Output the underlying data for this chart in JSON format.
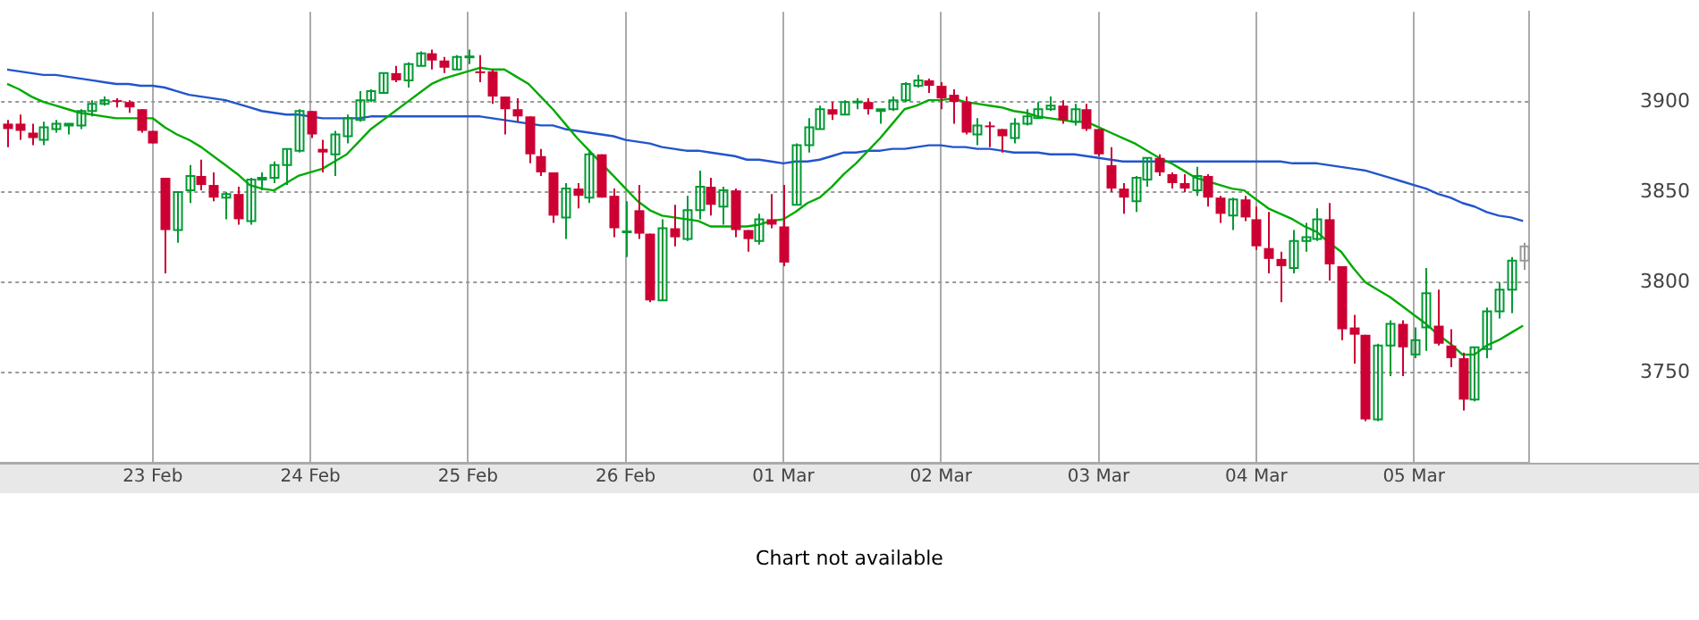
{
  "chart_data": {
    "type": "candlestick",
    "annotations": [
      "Chart not available"
    ],
    "categories": [
      null,
      null,
      null,
      null,
      null,
      null,
      null,
      null,
      null,
      null,
      null,
      null,
      "23 Feb",
      null,
      null,
      null,
      null,
      null,
      null,
      null,
      null,
      null,
      null,
      null,
      null,
      "24 Feb",
      null,
      null,
      null,
      null,
      null,
      null,
      null,
      null,
      null,
      null,
      null,
      null,
      "25 Feb",
      null,
      null,
      null,
      null,
      null,
      null,
      null,
      null,
      null,
      null,
      null,
      null,
      "26 Feb",
      null,
      null,
      null,
      null,
      null,
      null,
      null,
      null,
      null,
      null,
      null,
      null,
      "01 Mar",
      null,
      null,
      null,
      null,
      null,
      null,
      null,
      null,
      null,
      null,
      null,
      null,
      "02 Mar",
      null,
      null,
      null,
      null,
      null,
      null,
      null,
      null,
      null,
      null,
      null,
      null,
      "03 Mar",
      null,
      null,
      null,
      null,
      null,
      null,
      null,
      null,
      null,
      null,
      null,
      null,
      "04 Mar",
      null,
      null,
      null,
      null,
      null,
      null,
      null,
      null,
      null,
      null,
      null,
      null,
      "05 Mar",
      null,
      null,
      null,
      null,
      null,
      null,
      null,
      null,
      null
    ],
    "ohlc": [
      [
        3888,
        3890,
        3875,
        3885
      ],
      [
        3888,
        3893,
        3879,
        3884
      ],
      [
        3883,
        3888,
        3876,
        3880
      ],
      [
        3879,
        3889,
        3876,
        3886
      ],
      [
        3885,
        3890,
        3883,
        3888
      ],
      [
        3887,
        3888,
        3882,
        3888
      ],
      [
        3887,
        3896,
        3885,
        3895
      ],
      [
        3895,
        3901,
        3892,
        3899
      ],
      [
        3899,
        3903,
        3898,
        3901
      ],
      [
        3901,
        3902,
        3897,
        3900
      ],
      [
        3900,
        3901,
        3894,
        3897
      ],
      [
        3896,
        3896,
        3883,
        3884
      ],
      [
        3884,
        3884,
        3877,
        3877
      ],
      [
        3858,
        3858,
        3805,
        3829
      ],
      [
        3829,
        3850,
        3822,
        3850
      ],
      [
        3851,
        3865,
        3844,
        3859
      ],
      [
        3859,
        3868,
        3851,
        3854
      ],
      [
        3854,
        3861,
        3845,
        3847
      ],
      [
        3847,
        3850,
        3835,
        3849
      ],
      [
        3849,
        3853,
        3832,
        3835
      ],
      [
        3834,
        3858,
        3832,
        3857
      ],
      [
        3857,
        3861,
        3851,
        3858
      ],
      [
        3858,
        3867,
        3855,
        3865
      ],
      [
        3865,
        3874,
        3854,
        3874
      ],
      [
        3873,
        3896,
        3872,
        3895
      ],
      [
        3895,
        3895,
        3880,
        3882
      ],
      [
        3874,
        3879,
        3861,
        3872
      ],
      [
        3871,
        3884,
        3859,
        3882
      ],
      [
        3881,
        3893,
        3877,
        3891
      ],
      [
        3890,
        3906,
        3889,
        3901
      ],
      [
        3901,
        3907,
        3900,
        3906
      ],
      [
        3905,
        3916,
        3905,
        3916
      ],
      [
        3916,
        3920,
        3911,
        3912
      ],
      [
        3912,
        3922,
        3908,
        3921
      ],
      [
        3920,
        3928,
        3920,
        3927
      ],
      [
        3927,
        3929,
        3918,
        3923
      ],
      [
        3923,
        3925,
        3916,
        3919
      ],
      [
        3918,
        3926,
        3918,
        3925
      ],
      [
        3925,
        3929,
        3921,
        3925
      ],
      [
        3917,
        3926,
        3911,
        3916
      ],
      [
        3917,
        3918,
        3899,
        3903
      ],
      [
        3903,
        3903,
        3882,
        3896
      ],
      [
        3896,
        3902,
        3889,
        3892
      ],
      [
        3892,
        3892,
        3866,
        3871
      ],
      [
        3870,
        3874,
        3859,
        3861
      ],
      [
        3861,
        3861,
        3833,
        3837
      ],
      [
        3836,
        3855,
        3824,
        3852
      ],
      [
        3852,
        3855,
        3841,
        3848
      ],
      [
        3847,
        3873,
        3844,
        3871
      ],
      [
        3871,
        3871,
        3847,
        3847
      ],
      [
        3848,
        3852,
        3825,
        3830
      ],
      [
        3828,
        3845,
        3814,
        3828
      ],
      [
        3840,
        3854,
        3824,
        3827
      ],
      [
        3827,
        3827,
        3789,
        3790
      ],
      [
        3790,
        3835,
        3790,
        3830
      ],
      [
        3830,
        3843,
        3820,
        3825
      ],
      [
        3824,
        3848,
        3823,
        3840
      ],
      [
        3840,
        3862,
        3835,
        3853
      ],
      [
        3853,
        3858,
        3837,
        3843
      ],
      [
        3842,
        3853,
        3832,
        3851
      ],
      [
        3851,
        3852,
        3825,
        3829
      ],
      [
        3829,
        3829,
        3817,
        3824
      ],
      [
        3823,
        3838,
        3821,
        3835
      ],
      [
        3835,
        3849,
        3830,
        3832
      ],
      [
        3831,
        3854,
        3809,
        3811
      ],
      [
        3843,
        3877,
        3843,
        3876
      ],
      [
        3876,
        3891,
        3872,
        3886
      ],
      [
        3885,
        3898,
        3885,
        3896
      ],
      [
        3896,
        3900,
        3890,
        3893
      ],
      [
        3893,
        3901,
        3893,
        3900
      ],
      [
        3900,
        3902,
        3896,
        3900
      ],
      [
        3900,
        3902,
        3893,
        3896
      ],
      [
        3895,
        3896,
        3888,
        3896
      ],
      [
        3896,
        3903,
        3895,
        3901
      ],
      [
        3901,
        3911,
        3900,
        3910
      ],
      [
        3909,
        3915,
        3908,
        3912
      ],
      [
        3912,
        3913,
        3905,
        3909
      ],
      [
        3909,
        3911,
        3896,
        3902
      ],
      [
        3904,
        3907,
        3888,
        3900
      ],
      [
        3900,
        3903,
        3882,
        3883
      ],
      [
        3882,
        3891,
        3876,
        3887
      ],
      [
        3887,
        3889,
        3875,
        3886
      ],
      [
        3885,
        3885,
        3872,
        3881
      ],
      [
        3880,
        3891,
        3877,
        3888
      ],
      [
        3888,
        3896,
        3887,
        3892
      ],
      [
        3891,
        3900,
        3891,
        3896
      ],
      [
        3896,
        3903,
        3895,
        3898
      ],
      [
        3898,
        3901,
        3888,
        3890
      ],
      [
        3889,
        3899,
        3887,
        3896
      ],
      [
        3896,
        3899,
        3884,
        3885
      ],
      [
        3885,
        3885,
        3870,
        3871
      ],
      [
        3865,
        3875,
        3850,
        3852
      ],
      [
        3852,
        3855,
        3838,
        3847
      ],
      [
        3845,
        3859,
        3839,
        3858
      ],
      [
        3857,
        3869,
        3853,
        3869
      ],
      [
        3869,
        3871,
        3859,
        3861
      ],
      [
        3860,
        3861,
        3852,
        3855
      ],
      [
        3855,
        3860,
        3850,
        3852
      ],
      [
        3851,
        3864,
        3848,
        3859
      ],
      [
        3859,
        3860,
        3842,
        3847
      ],
      [
        3847,
        3848,
        3833,
        3838
      ],
      [
        3837,
        3847,
        3829,
        3846
      ],
      [
        3846,
        3848,
        3834,
        3836
      ],
      [
        3835,
        3842,
        3818,
        3820
      ],
      [
        3819,
        3839,
        3805,
        3813
      ],
      [
        3813,
        3817,
        3789,
        3809
      ],
      [
        3808,
        3829,
        3805,
        3823
      ],
      [
        3823,
        3833,
        3817,
        3825
      ],
      [
        3824,
        3841,
        3823,
        3835
      ],
      [
        3835,
        3844,
        3801,
        3810
      ],
      [
        3809,
        3809,
        3768,
        3774
      ],
      [
        3775,
        3782,
        3755,
        3771
      ],
      [
        3771,
        3771,
        3723,
        3724
      ],
      [
        3724,
        3766,
        3723,
        3765
      ],
      [
        3765,
        3779,
        3748,
        3777
      ],
      [
        3777,
        3779,
        3748,
        3764
      ],
      [
        3760,
        3775,
        3758,
        3768
      ],
      [
        3775,
        3808,
        3762,
        3794
      ],
      [
        3776,
        3796,
        3765,
        3766
      ],
      [
        3765,
        3774,
        3753,
        3758
      ],
      [
        3758,
        3761,
        3729,
        3735
      ],
      [
        3735,
        3764,
        3734,
        3764
      ],
      [
        3763,
        3786,
        3758,
        3784
      ],
      [
        3784,
        3800,
        3780,
        3796
      ],
      [
        3796,
        3814,
        3783,
        3812
      ],
      [
        3812,
        3822,
        3807,
        3820
      ]
    ],
    "colors": [
      "#cc0033",
      "#cc0033",
      "#cc0033",
      "#009933",
      "#009933",
      "#009933",
      "#009933",
      "#009933",
      "#009933",
      "#cc0033",
      "#cc0033",
      "#cc0033",
      "#cc0033",
      "#cc0033",
      "#009933",
      "#009933",
      "#cc0033",
      "#cc0033",
      "#009933",
      "#cc0033",
      "#009933",
      "#009933",
      "#009933",
      "#009933",
      "#009933",
      "#cc0033",
      "#cc0033",
      "#009933",
      "#009933",
      "#009933",
      "#009933",
      "#009933",
      "#cc0033",
      "#009933",
      "#009933",
      "#cc0033",
      "#cc0033",
      "#009933",
      "#009933",
      "#cc0033",
      "#cc0033",
      "#cc0033",
      "#cc0033",
      "#cc0033",
      "#cc0033",
      "#cc0033",
      "#009933",
      "#cc0033",
      "#009933",
      "#cc0033",
      "#cc0033",
      "#009933",
      "#cc0033",
      "#cc0033",
      "#009933",
      "#cc0033",
      "#009933",
      "#009933",
      "#cc0033",
      "#009933",
      "#cc0033",
      "#cc0033",
      "#009933",
      "#cc0033",
      "#cc0033",
      "#009933",
      "#009933",
      "#009933",
      "#cc0033",
      "#009933",
      "#009933",
      "#cc0033",
      "#009933",
      "#009933",
      "#009933",
      "#009933",
      "#cc0033",
      "#cc0033",
      "#cc0033",
      "#cc0033",
      "#009933",
      "#cc0033",
      "#cc0033",
      "#009933",
      "#009933",
      "#009933",
      "#009933",
      "#cc0033",
      "#009933",
      "#cc0033",
      "#cc0033",
      "#cc0033",
      "#cc0033",
      "#009933",
      "#009933",
      "#cc0033",
      "#cc0033",
      "#cc0033",
      "#009933",
      "#cc0033",
      "#cc0033",
      "#009933",
      "#cc0033",
      "#cc0033",
      "#cc0033",
      "#cc0033",
      "#009933",
      "#009933",
      "#009933",
      "#cc0033",
      "#cc0033",
      "#cc0033",
      "#cc0033",
      "#009933",
      "#009933",
      "#cc0033",
      "#009933",
      "#009933",
      "#cc0033",
      "#cc0033",
      "#cc0033",
      "#009933",
      "#009933",
      "#009933",
      "#009933",
      "#999999"
    ],
    "series": [
      {
        "type": "line",
        "color": "#00aa00",
        "values": [
          3910,
          3907,
          3903,
          3900,
          3898,
          3896,
          3894,
          3893,
          3892,
          3891,
          3891,
          3891,
          3891,
          3886,
          3882,
          3879,
          3875,
          3870,
          3865,
          3860,
          3854,
          3852,
          3851,
          3855,
          3859,
          3861,
          3863,
          3867,
          3871,
          3878,
          3885,
          3890,
          3895,
          3900,
          3905,
          3910,
          3913,
          3915,
          3917,
          3919,
          3918,
          3918,
          3914,
          3910,
          3903,
          3896,
          3888,
          3880,
          3873,
          3866,
          3859,
          3852,
          3845,
          3840,
          3837,
          3836,
          3835,
          3834,
          3831,
          3831,
          3831,
          3831,
          3832,
          3834,
          3835,
          3839,
          3844,
          3847,
          3853,
          3860,
          3866,
          3873,
          3880,
          3888,
          3896,
          3898,
          3901,
          3901,
          3902,
          3900,
          3899,
          3898,
          3897,
          3895,
          3894,
          3892,
          3891,
          3890,
          3889,
          3889,
          3886,
          3883,
          3880,
          3877,
          3873,
          3869,
          3866,
          3862,
          3858,
          3856,
          3854,
          3852,
          3851,
          3846,
          3841,
          3838,
          3835,
          3831,
          3828,
          3822,
          3817,
          3808,
          3800,
          3796,
          3792,
          3787,
          3782,
          3777,
          3771,
          3766,
          3760,
          3760,
          3765,
          3768,
          3772,
          3776
        ]
      },
      {
        "type": "line",
        "color": "#2255cc",
        "values": [
          3918,
          3917,
          3916,
          3915,
          3915,
          3914,
          3913,
          3912,
          3911,
          3910,
          3910,
          3909,
          3909,
          3908,
          3906,
          3904,
          3903,
          3902,
          3901,
          3899,
          3897,
          3895,
          3894,
          3893,
          3893,
          3892,
          3891,
          3891,
          3891,
          3891,
          3892,
          3892,
          3892,
          3892,
          3892,
          3892,
          3892,
          3892,
          3892,
          3892,
          3891,
          3890,
          3889,
          3888,
          3887,
          3887,
          3885,
          3884,
          3883,
          3882,
          3881,
          3879,
          3878,
          3877,
          3875,
          3874,
          3873,
          3873,
          3872,
          3871,
          3870,
          3868,
          3868,
          3867,
          3866,
          3867,
          3867,
          3868,
          3870,
          3872,
          3872,
          3873,
          3873,
          3874,
          3874,
          3875,
          3876,
          3876,
          3875,
          3875,
          3874,
          3874,
          3873,
          3872,
          3872,
          3872,
          3871,
          3871,
          3871,
          3870,
          3869,
          3868,
          3867,
          3867,
          3867,
          3867,
          3867,
          3867,
          3867,
          3867,
          3867,
          3867,
          3867,
          3867,
          3867,
          3867,
          3866,
          3866,
          3866,
          3865,
          3864,
          3863,
          3862,
          3860,
          3858,
          3856,
          3854,
          3852,
          3849,
          3847,
          3844,
          3842,
          3839,
          3837,
          3836,
          3834
        ]
      }
    ],
    "ylim": [
      3700,
      3950
    ],
    "yticks": [
      3750,
      3800,
      3850,
      3900
    ],
    "grid": true,
    "legend": false
  }
}
